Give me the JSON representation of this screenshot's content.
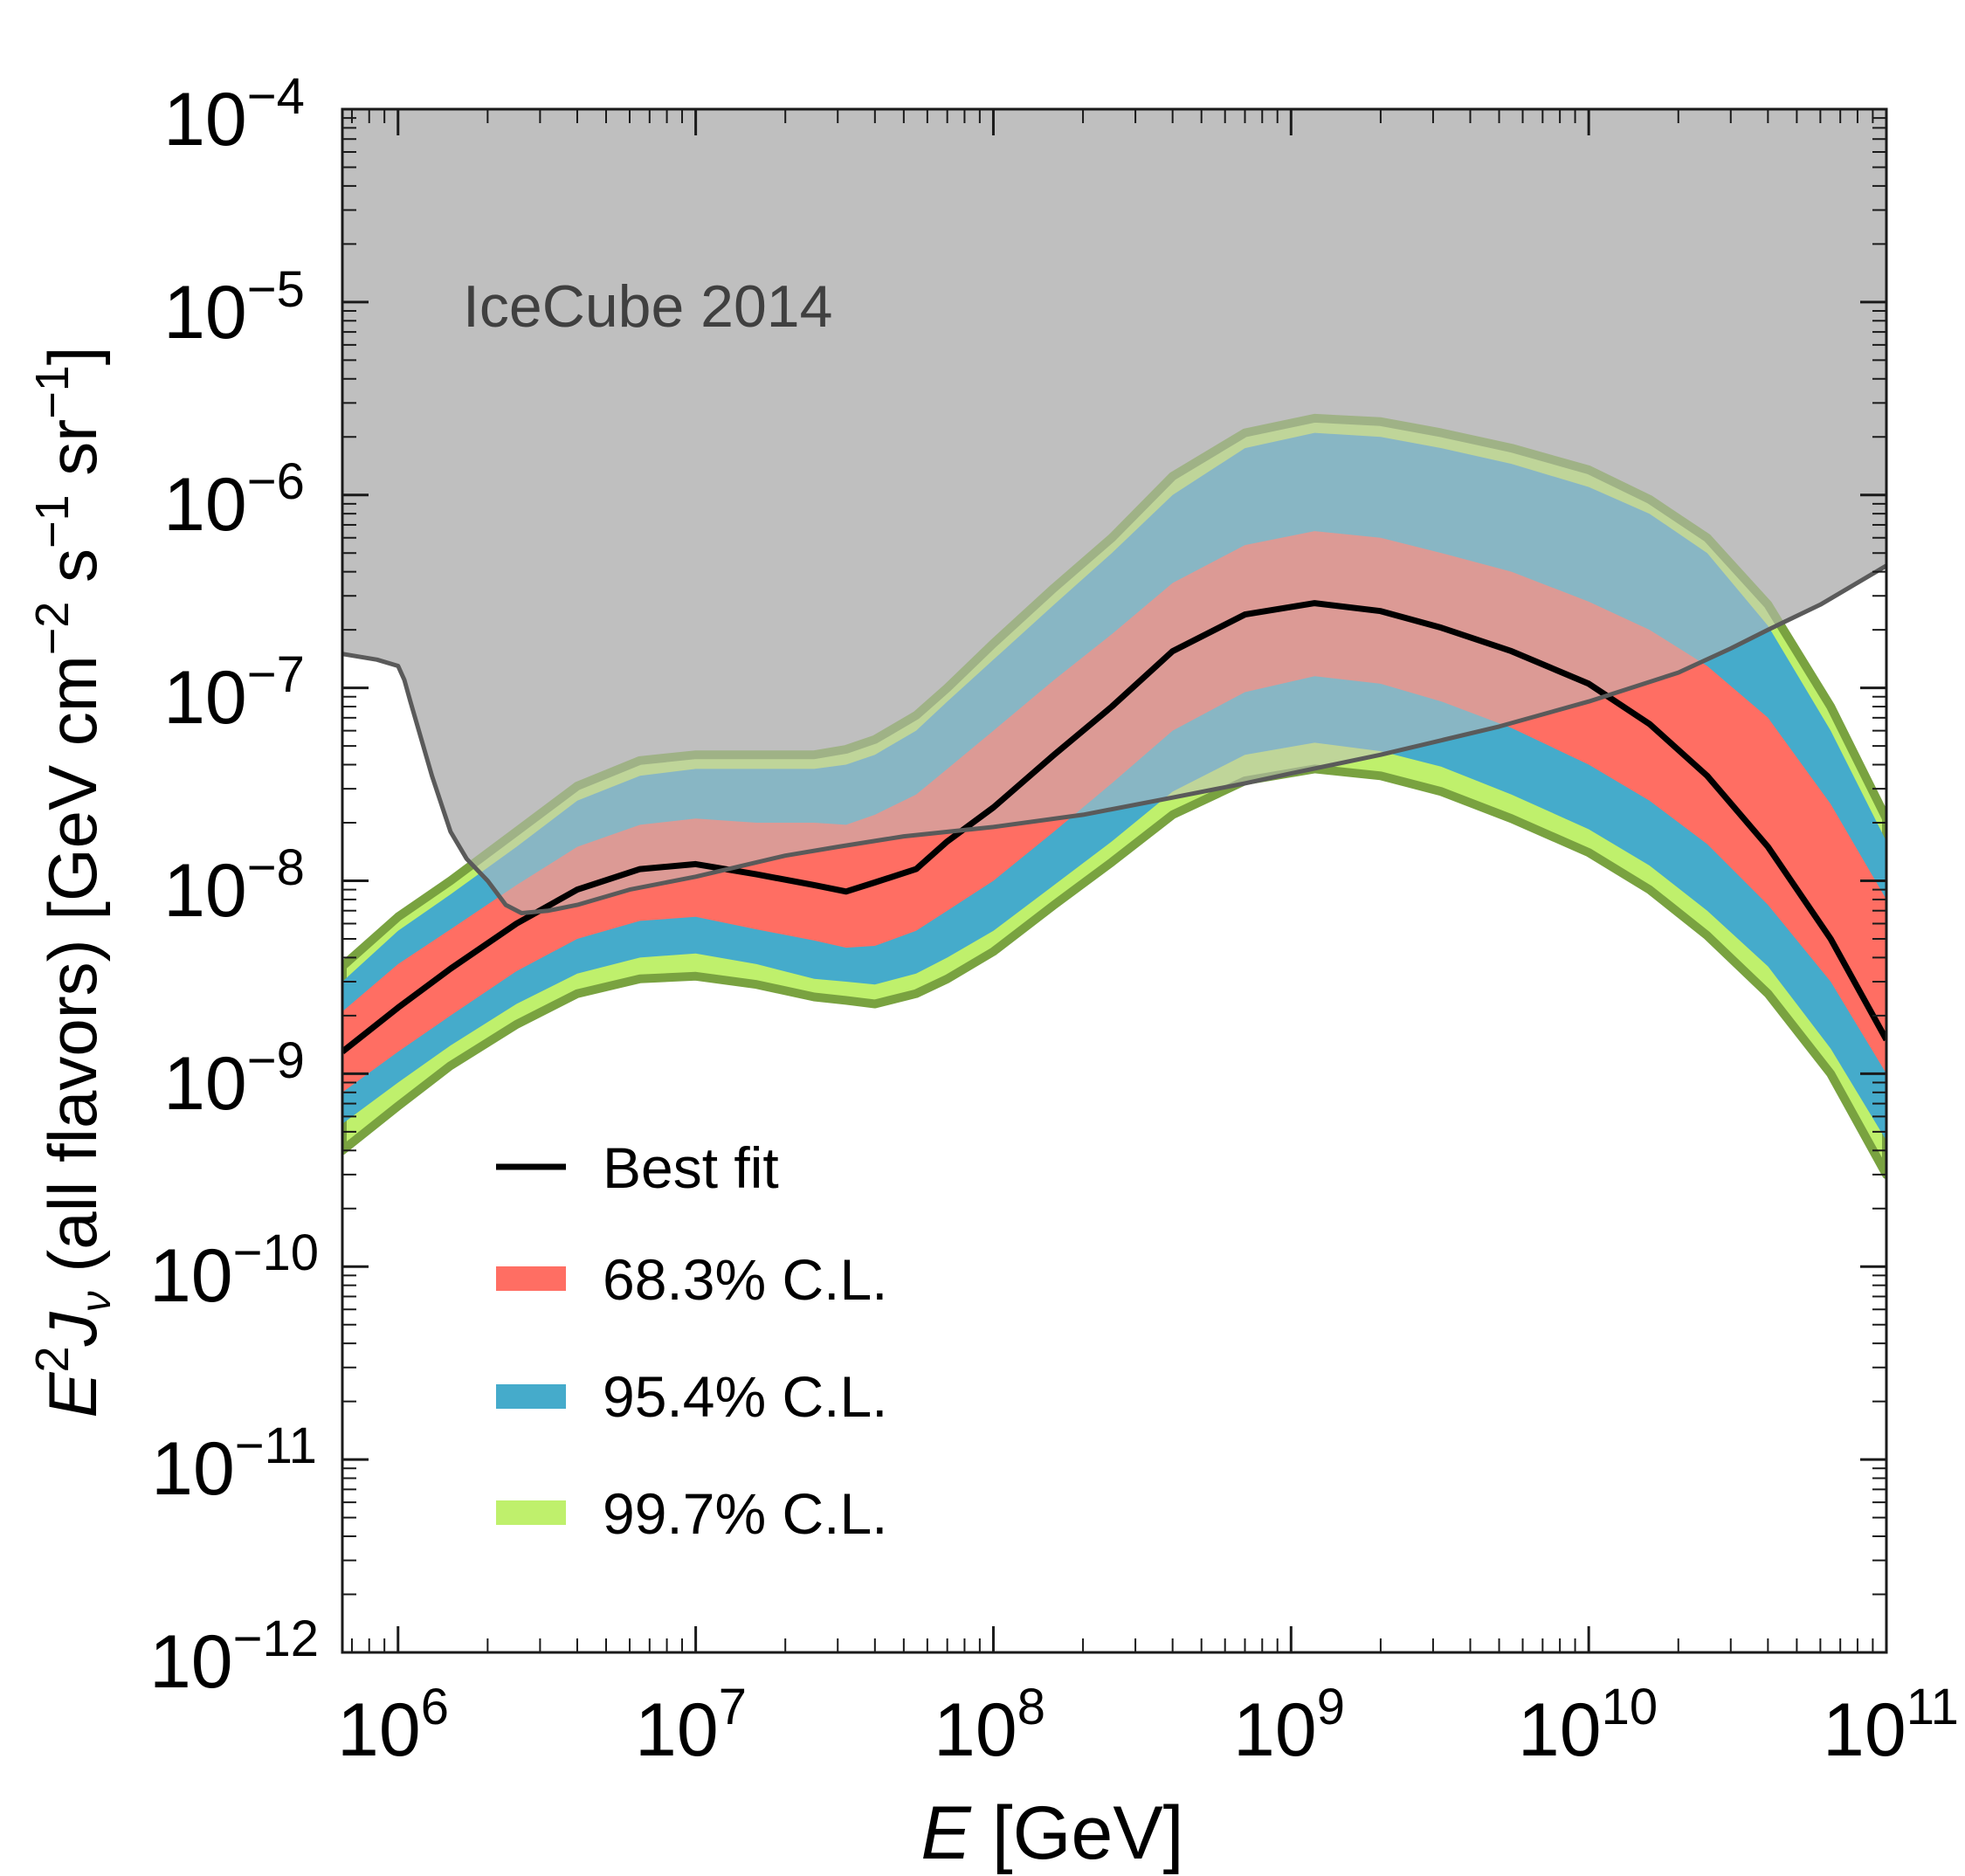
{
  "colors": {
    "icecube_fill": "#bfbfbf",
    "icecube_line": "#5a5a5a",
    "band_68": "#ff6e63",
    "band_95": "#45abcb",
    "band_99": "#bff06c",
    "band_99_edge": "#79a240",
    "band_95_edge": "#6a9aa8",
    "best_fit": "#000000",
    "axis": "#1a1a1a"
  },
  "chart_data": {
    "type": "area",
    "title": "",
    "xlabel_italic": "E",
    "xlabel_rest": "[GeV]",
    "ylabel_main_italic": "E",
    "ylabel_sup": "2",
    "ylabel_J": "J",
    "ylabel_sub": "ν",
    "ylabel_paren": "(all flavors)",
    "ylabel_units": "[GeV cm",
    "ylabel_units_exp1": "−2",
    "ylabel_units_s": "s",
    "ylabel_units_exp2": "−1",
    "ylabel_units_sr": "sr",
    "ylabel_units_exp3": "−1",
    "ylabel_units_close": "]",
    "xscale": "log",
    "yscale": "log",
    "xlim": [
      650000,
      100000000000
    ],
    "ylim": [
      1e-12,
      0.0001
    ],
    "x_ticks": [
      {
        "base": "10",
        "exp": "6",
        "value": 1000000
      },
      {
        "base": "10",
        "exp": "7",
        "value": 10000000
      },
      {
        "base": "10",
        "exp": "8",
        "value": 100000000
      },
      {
        "base": "10",
        "exp": "9",
        "value": 1000000000
      },
      {
        "base": "10",
        "exp": "10",
        "value": 10000000000
      },
      {
        "base": "10",
        "exp": "11",
        "value": 100000000000
      }
    ],
    "y_ticks": [
      {
        "base": "10",
        "exp": "−12",
        "value": 1e-12
      },
      {
        "base": "10",
        "exp": "−11",
        "value": 1e-11
      },
      {
        "base": "10",
        "exp": "−10",
        "value": 1e-10
      },
      {
        "base": "10",
        "exp": "−9",
        "value": 1e-09
      },
      {
        "base": "10",
        "exp": "−8",
        "value": 1e-08
      },
      {
        "base": "10",
        "exp": "−7",
        "value": 1e-07
      },
      {
        "base": "10",
        "exp": "−6",
        "value": 1e-06
      },
      {
        "base": "10",
        "exp": "−5",
        "value": 1e-05
      },
      {
        "base": "10",
        "exp": "−4",
        "value": 0.0001
      }
    ],
    "annotation": "IceCube 2014",
    "legend": {
      "placement": "bottom-left",
      "entries": [
        {
          "label": "Best fit",
          "kind": "line",
          "color": "#000000"
        },
        {
          "label": "68.3% C.L.",
          "kind": "band",
          "color": "#ff6e63"
        },
        {
          "label": "95.4% C.L.",
          "kind": "band",
          "color": "#45abcb"
        },
        {
          "label": "99.7% C.L.",
          "kind": "band",
          "color": "#bff06c"
        }
      ]
    },
    "x": [
      650000,
      1000000,
      1500000,
      2500000,
      4000000,
      6500000,
      10000000,
      16000000,
      25000000,
      32000000,
      40000000,
      55000000,
      70000000,
      100000000,
      160000000,
      250000000,
      400000000,
      700000000,
      1200000000,
      2000000000,
      3200000000,
      5500000000,
      10000000000,
      16000000000,
      25000000000,
      40000000000,
      65000000000,
      100000000000
    ],
    "series": [
      {
        "name": "Best fit",
        "values": [
          1.3e-09,
          2.2e-09,
          3.5e-09,
          6e-09,
          9e-09,
          1.15e-08,
          1.22e-08,
          1.08e-08,
          9.5e-09,
          8.8e-09,
          9.8e-09,
          1.15e-08,
          1.6e-08,
          2.4e-08,
          4.5e-08,
          8e-08,
          1.55e-07,
          2.4e-07,
          2.75e-07,
          2.5e-07,
          2.05e-07,
          1.55e-07,
          1.05e-07,
          6.5e-08,
          3.5e-08,
          1.5e-08,
          5e-09,
          1.5e-09
        ]
      },
      {
        "name": "68.3% upper",
        "values": [
          2.1e-09,
          3.7e-09,
          5.6e-09,
          9.5e-09,
          1.5e-08,
          1.95e-08,
          2.1e-08,
          2e-08,
          2e-08,
          1.95e-08,
          2.2e-08,
          2.8e-08,
          3.8e-08,
          6e-08,
          1.1e-07,
          1.9e-07,
          3.5e-07,
          5.5e-07,
          6.5e-07,
          6e-07,
          5e-07,
          4e-07,
          2.8e-07,
          2e-07,
          1.3e-07,
          7e-08,
          2.5e-08,
          8e-09
        ]
      },
      {
        "name": "68.3% lower",
        "values": [
          8e-10,
          1.3e-09,
          2e-09,
          3.4e-09,
          5e-09,
          6.2e-09,
          6.5e-09,
          5.6e-09,
          4.9e-09,
          4.5e-09,
          4.6e-09,
          5.5e-09,
          7e-09,
          1e-08,
          1.8e-08,
          3.2e-08,
          6e-08,
          9.5e-08,
          1.15e-07,
          1.05e-07,
          8.5e-08,
          6.2e-08,
          4e-08,
          2.6e-08,
          1.55e-08,
          7.5e-09,
          3e-09,
          1e-09
        ]
      },
      {
        "name": "95.4% upper",
        "values": [
          3e-09,
          5.5e-09,
          8.5e-09,
          1.5e-08,
          2.6e-08,
          3.5e-08,
          3.8e-08,
          3.8e-08,
          3.8e-08,
          4e-08,
          4.5e-08,
          6e-08,
          8.5e-08,
          1.4e-07,
          2.7e-07,
          5e-07,
          1e-06,
          1.75e-06,
          2.1e-06,
          2e-06,
          1.75e-06,
          1.45e-06,
          1.1e-06,
          8e-07,
          5e-07,
          2.1e-07,
          6e-08,
          1.6e-08
        ]
      },
      {
        "name": "95.4% lower",
        "values": [
          5.5e-10,
          9e-10,
          1.4e-09,
          2.3e-09,
          3.3e-09,
          4e-09,
          4.2e-09,
          3.7e-09,
          3.1e-09,
          3e-09,
          2.9e-09,
          3.3e-09,
          4e-09,
          5.5e-09,
          9.5e-09,
          1.6e-08,
          2.9e-08,
          4.5e-08,
          5.2e-08,
          4.7e-08,
          3.9e-08,
          2.8e-08,
          1.85e-08,
          1.2e-08,
          7e-09,
          3.6e-09,
          1.35e-09,
          4.5e-10
        ]
      },
      {
        "name": "99.7% upper",
        "values": [
          3.6e-09,
          6.5e-09,
          1e-08,
          1.8e-08,
          3.1e-08,
          4.2e-08,
          4.5e-08,
          4.5e-08,
          4.5e-08,
          4.8e-08,
          5.4e-08,
          7.2e-08,
          1e-07,
          1.7e-07,
          3.3e-07,
          6e-07,
          1.25e-06,
          2.1e-06,
          2.5e-06,
          2.4e-06,
          2.1e-06,
          1.75e-06,
          1.35e-06,
          9.5e-07,
          6e-07,
          2.7e-07,
          8e-08,
          2.1e-08
        ]
      },
      {
        "name": "99.7% lower",
        "values": [
          4e-10,
          6.8e-10,
          1.1e-09,
          1.8e-09,
          2.6e-09,
          3.1e-09,
          3.2e-09,
          2.9e-09,
          2.5e-09,
          2.4e-09,
          2.3e-09,
          2.6e-09,
          3.1e-09,
          4.3e-09,
          7.5e-09,
          1.25e-08,
          2.2e-08,
          3.3e-08,
          3.8e-08,
          3.5e-08,
          2.9e-08,
          2.1e-08,
          1.4e-08,
          9e-09,
          5.2e-09,
          2.6e-09,
          1e-09,
          3e-10
        ]
      },
      {
        "name": "IceCube 2014 limit",
        "x": [
          650000,
          850000,
          1000000,
          1050000,
          1100000,
          1300000,
          1500000,
          1700000,
          2000000,
          2300000,
          2600000,
          3200000,
          4000000,
          6000000,
          10000000,
          20000000,
          30000000,
          50000000,
          100000000,
          200000000,
          400000000,
          700000000,
          1000000000,
          2000000000,
          5000000000,
          10000000000,
          20000000000,
          30000000000,
          40000000000,
          60000000000,
          100000000000
        ],
        "values": [
          1.5e-07,
          1.4e-07,
          1.3e-07,
          1.1e-07,
          8.5e-08,
          3.5e-08,
          1.8e-08,
          1.3e-08,
          1e-08,
          7.5e-09,
          6.8e-09,
          7e-09,
          7.5e-09,
          9e-09,
          1.05e-08,
          1.35e-08,
          1.5e-08,
          1.7e-08,
          1.9e-08,
          2.2e-08,
          2.7e-08,
          3.2e-08,
          3.6e-08,
          4.5e-08,
          6.3e-08,
          8.5e-08,
          1.2e-07,
          1.6e-07,
          2e-07,
          2.7e-07,
          4.3e-07
        ]
      }
    ]
  }
}
